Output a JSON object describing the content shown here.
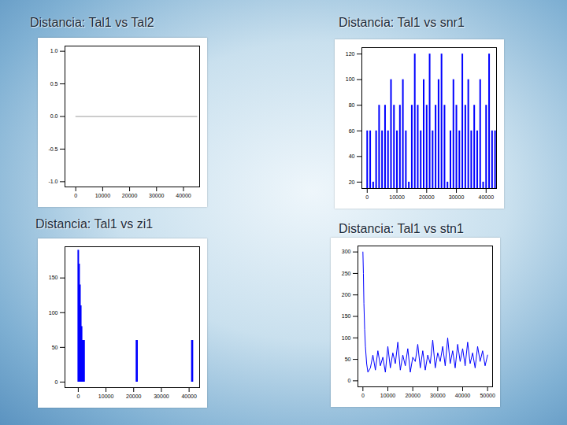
{
  "chart_data": [
    {
      "type": "line",
      "title": "Distancia: Tal1 vs Tal2",
      "color": "#999999",
      "x": [
        0,
        45000
      ],
      "values": [
        0,
        0
      ],
      "xlim": [
        -4000,
        46000
      ],
      "xticks": [
        0,
        10000,
        20000,
        30000,
        40000
      ],
      "ylim": [
        -1.08,
        1.08
      ],
      "yticks": [
        {
          "value": -1,
          "label": "-1.0"
        },
        {
          "value": -0.5,
          "label": "-0.5"
        },
        {
          "value": 0,
          "label": "0.0"
        },
        {
          "value": 0.5,
          "label": "0.5"
        },
        {
          "value": 1,
          "label": "1.0"
        }
      ]
    },
    {
      "type": "spike",
      "title": "Distancia: Tal1 vs snr1",
      "color": "#0000ff",
      "x": [
        0,
        1000,
        2000,
        3000,
        4000,
        5000,
        6000,
        7000,
        8000,
        9000,
        10000,
        11000,
        12000,
        13000,
        14000,
        15000,
        16000,
        17000,
        18000,
        19000,
        20000,
        21000,
        22000,
        23000,
        24000,
        25000,
        26000,
        27000,
        28000,
        29000,
        30000,
        31000,
        32000,
        33000,
        34000,
        35000,
        36000,
        37000,
        38000,
        39000,
        40000,
        41000,
        42000,
        43000
      ],
      "values": [
        60,
        60,
        20,
        60,
        80,
        60,
        80,
        60,
        100,
        80,
        60,
        80,
        100,
        60,
        20,
        80,
        120,
        80,
        60,
        100,
        80,
        120,
        60,
        80,
        100,
        120,
        80,
        20,
        60,
        100,
        80,
        60,
        120,
        80,
        100,
        60,
        80,
        60,
        100,
        20,
        80,
        120,
        60,
        60
      ],
      "xlim": [
        -1800,
        43500
      ],
      "xticks": [
        0,
        10000,
        20000,
        30000,
        40000
      ],
      "ylim": [
        15,
        125
      ],
      "yticks": [
        20,
        40,
        60,
        80,
        100,
        120
      ]
    },
    {
      "type": "spike",
      "title": "Distancia: Tal1 vs zi1",
      "color": "#0000ff",
      "x": [
        0,
        300,
        600,
        900,
        1200,
        1500,
        1800,
        2100,
        21000,
        21200,
        41000,
        41200
      ],
      "values": [
        190,
        170,
        140,
        110,
        80,
        60,
        60,
        60,
        60,
        60,
        60,
        60
      ],
      "xlim": [
        -4800,
        43800
      ],
      "xticks": [
        0,
        10000,
        20000,
        30000,
        40000
      ],
      "ylim": [
        -8,
        195
      ],
      "yticks": [
        0,
        50,
        100,
        150
      ]
    },
    {
      "type": "line",
      "title": "Distancia: Tal1 vs stn1",
      "color": "#0000ff",
      "x": [
        0,
        200,
        400,
        700,
        1000,
        1500,
        2000,
        3000,
        4000,
        5000,
        6000,
        7000,
        8000,
        9000,
        10000,
        11000,
        12000,
        13000,
        14000,
        15000,
        16000,
        17000,
        18000,
        19000,
        20000,
        21000,
        22000,
        23000,
        24000,
        25000,
        26000,
        27000,
        28000,
        29000,
        30000,
        31000,
        32000,
        33000,
        34000,
        35000,
        36000,
        37000,
        38000,
        39000,
        40000,
        41000,
        42000,
        43000,
        44000,
        45000,
        46000,
        47000,
        48000,
        49000,
        50000
      ],
      "values": [
        300,
        250,
        180,
        120,
        80,
        40,
        20,
        30,
        60,
        25,
        70,
        35,
        55,
        20,
        80,
        30,
        65,
        40,
        90,
        25,
        60,
        35,
        75,
        20,
        55,
        45,
        85,
        30,
        70,
        25,
        60,
        40,
        95,
        30,
        65,
        45,
        80,
        35,
        100,
        40,
        70,
        30,
        85,
        45,
        75,
        35,
        90,
        40,
        65,
        30,
        80,
        45,
        70,
        35,
        60
      ],
      "xlim": [
        -2000,
        52000
      ],
      "xticks": [
        0,
        10000,
        20000,
        30000,
        40000,
        50000
      ],
      "ylim": [
        -14,
        314
      ],
      "yticks": [
        0,
        50,
        100,
        150,
        200,
        250,
        300
      ]
    }
  ]
}
